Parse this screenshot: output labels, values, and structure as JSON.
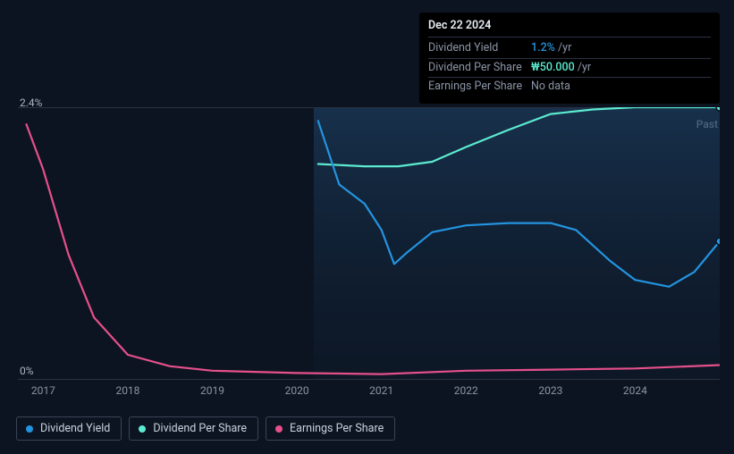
{
  "chart": {
    "type": "line",
    "background_color": "#0d1421",
    "grid_color": "#2a3242",
    "xlim": [
      2016.7,
      2025
    ],
    "ylim": [
      0,
      2.4
    ],
    "y_ticks": [
      0,
      2.4
    ],
    "y_tick_labels": [
      "0%",
      "2.4%"
    ],
    "x_ticks": [
      2017,
      2018,
      2019,
      2020,
      2021,
      2022,
      2023,
      2024
    ],
    "x_tick_labels": [
      "2017",
      "2018",
      "2019",
      "2020",
      "2021",
      "2022",
      "2023",
      "2024"
    ],
    "past_label": "Past",
    "highlight_band": {
      "x_start": 2020.2,
      "x_end": 2025,
      "fill": "#17304a",
      "opacity": 0.55
    },
    "series": {
      "dividend_yield": {
        "label": "Dividend Yield",
        "color": "#2394df",
        "line_width": 2.2,
        "x": [
          2020.25,
          2020.5,
          2020.8,
          2021.0,
          2021.15,
          2021.3,
          2021.6,
          2022.0,
          2022.5,
          2023.0,
          2023.3,
          2023.7,
          2024.0,
          2024.4,
          2024.7,
          2025.0
        ],
        "y": [
          2.28,
          1.72,
          1.55,
          1.32,
          1.02,
          1.12,
          1.3,
          1.36,
          1.38,
          1.38,
          1.32,
          1.05,
          0.88,
          0.82,
          0.95,
          1.22
        ]
      },
      "dividend_per_share": {
        "label": "Dividend Per Share",
        "color": "#5cead0",
        "line_width": 2.2,
        "x": [
          2020.25,
          2020.8,
          2021.2,
          2021.6,
          2022.0,
          2022.5,
          2023.0,
          2023.5,
          2024.0,
          2025.0
        ],
        "y": [
          1.9,
          1.88,
          1.88,
          1.92,
          2.05,
          2.2,
          2.34,
          2.38,
          2.4,
          2.4
        ]
      },
      "earnings_per_share": {
        "label": "Earnings Per Share",
        "color": "#e5508b",
        "line_width": 2.2,
        "x": [
          2016.8,
          2017.0,
          2017.3,
          2017.6,
          2018.0,
          2018.5,
          2019.0,
          2020.0,
          2021.0,
          2022.0,
          2023.0,
          2024.0,
          2025.0
        ],
        "y": [
          2.25,
          1.85,
          1.1,
          0.55,
          0.22,
          0.12,
          0.08,
          0.06,
          0.05,
          0.08,
          0.09,
          0.1,
          0.13
        ]
      }
    },
    "end_markers": [
      {
        "series": "dividend_yield",
        "x": 2025,
        "y": 1.22,
        "radius": 4
      },
      {
        "series": "dividend_per_share",
        "x": 2025,
        "y": 2.4,
        "radius": 4
      }
    ]
  },
  "tooltip": {
    "date": "Dec 22 2024",
    "rows": [
      {
        "label": "Dividend Yield",
        "value_highlight": "1.2%",
        "value_suffix": " /yr",
        "highlight_class": "highlight-blue"
      },
      {
        "label": "Dividend Per Share",
        "value_highlight": "₩50.000",
        "value_suffix": " /yr",
        "highlight_class": "highlight-teal"
      },
      {
        "label": "Earnings Per Share",
        "value_plain": "No data"
      }
    ]
  },
  "legend": {
    "items": [
      {
        "label": "Dividend Yield",
        "color": "#2394df"
      },
      {
        "label": "Dividend Per Share",
        "color": "#5cead0"
      },
      {
        "label": "Earnings Per Share",
        "color": "#e5508b"
      }
    ]
  }
}
